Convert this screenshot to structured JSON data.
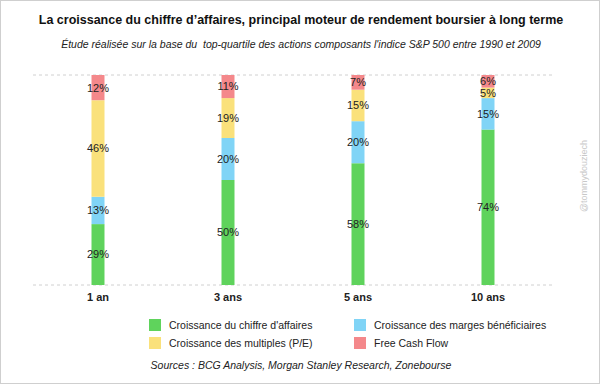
{
  "chart_data": {
    "type": "bar",
    "title": "La croissance du chiffre d’affaires, principal moteur de rendement boursier à long terme",
    "subtitle": "Étude réalisée sur la base du  top-quartile des actions composants l'indice S&P 500 entre 1990 et 2009",
    "source": "Sources : BCG Analysis, Morgan Stanley Research, Zonebourse",
    "watermark": "@tommydouziech",
    "categories": [
      "1 an",
      "3 ans",
      "5 ans",
      "10 ans"
    ],
    "series": [
      {
        "name": "Croissance du chiffre d'affaires",
        "color": "#5fd35c",
        "values": [
          29,
          50,
          58,
          74
        ],
        "value_labels": [
          "29%",
          "50%",
          "58%",
          "74%"
        ]
      },
      {
        "name": "Croissance des marges bénéficiaires",
        "color": "#80d4f6",
        "values": [
          13,
          20,
          20,
          15
        ],
        "value_labels": [
          "13%",
          "20%",
          "20%",
          "15%"
        ]
      },
      {
        "name": "Croissance des multiples (P/E)",
        "color": "#fae17b",
        "values": [
          46,
          19,
          15,
          5
        ],
        "value_labels": [
          "46%",
          "19%",
          "15%",
          "5%"
        ]
      },
      {
        "name": "Free Cash Flow",
        "color": "#f4888b",
        "values": [
          12,
          11,
          7,
          6
        ],
        "value_labels": [
          "12%",
          "11%",
          "7%",
          "6%"
        ]
      }
    ],
    "ylim": [
      0,
      100
    ],
    "yticks": [
      0,
      25,
      50,
      75,
      100
    ],
    "grid": true,
    "stacked": true,
    "data_labels": true,
    "legend": "bottom",
    "tick_labels": "x"
  }
}
